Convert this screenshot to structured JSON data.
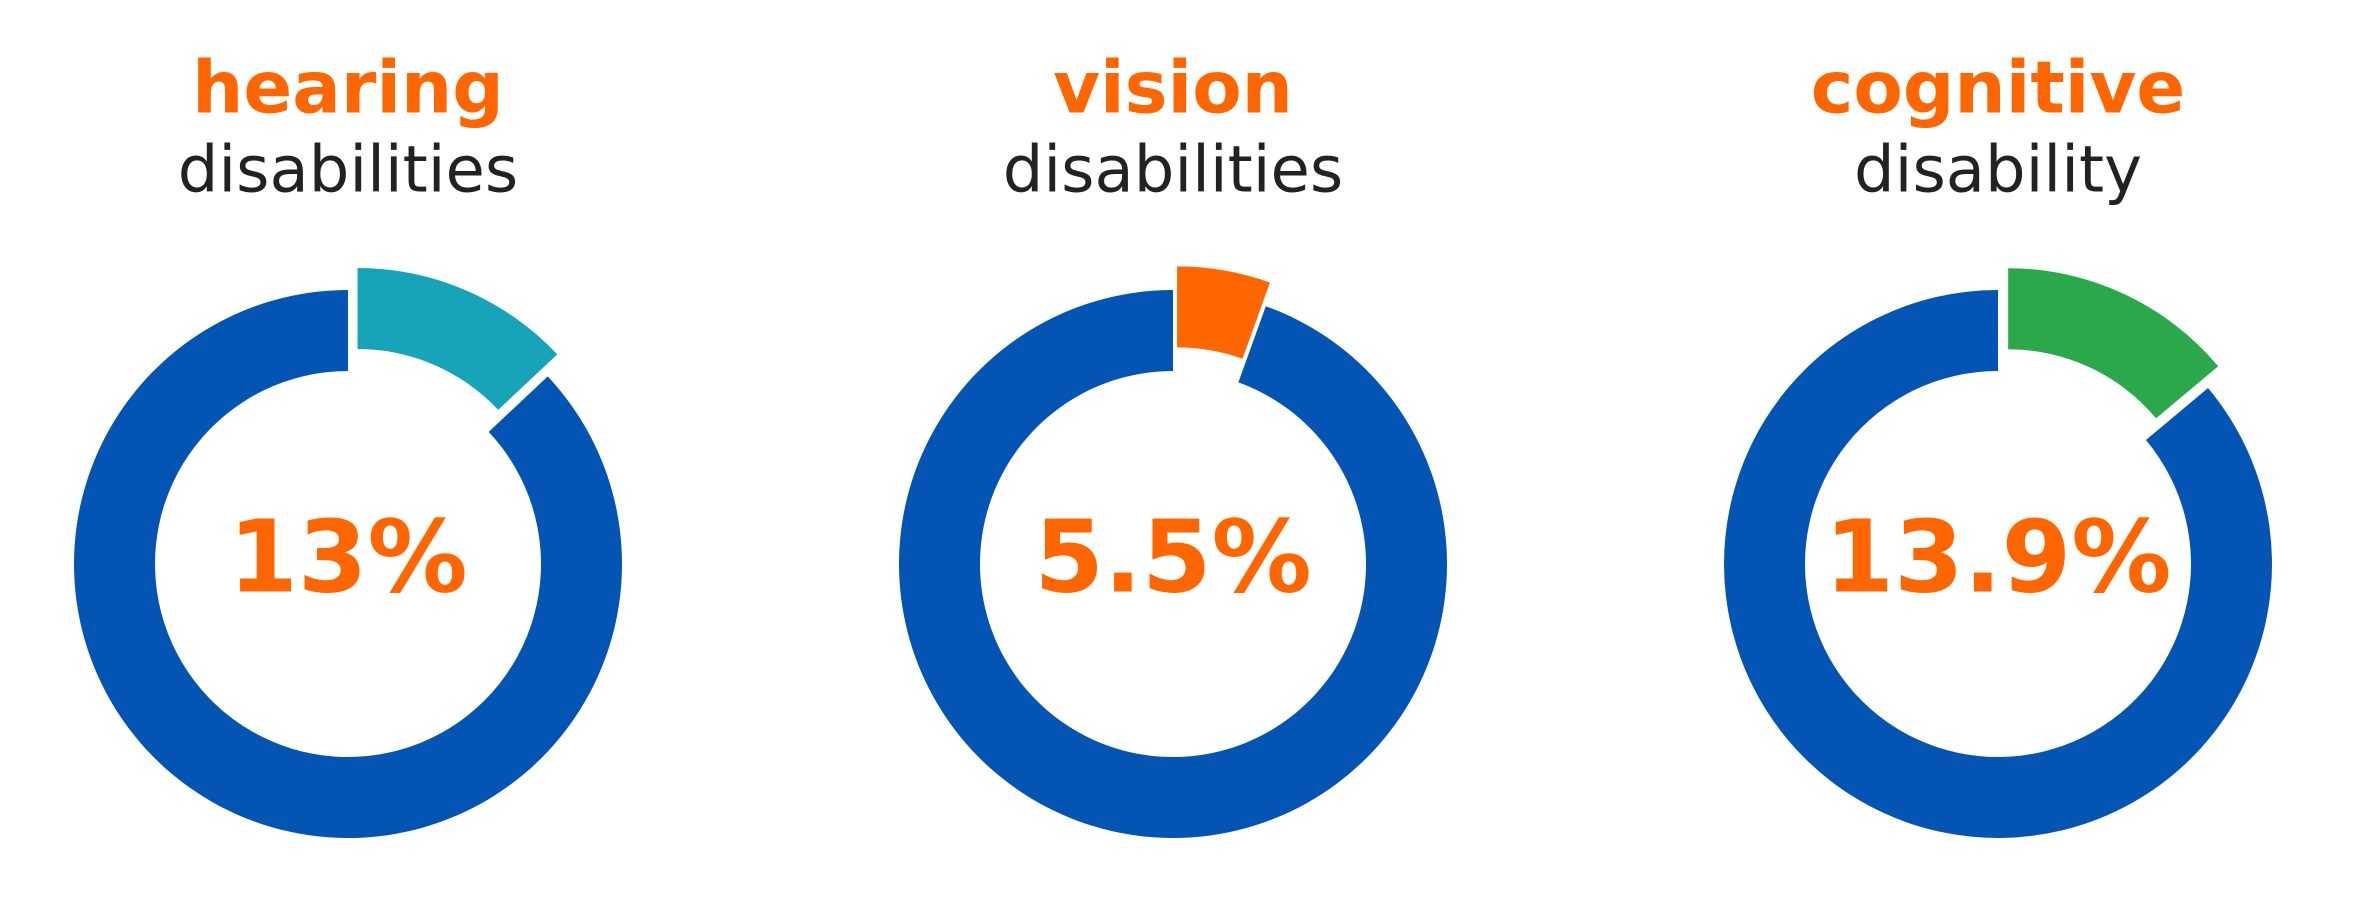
{
  "chart_data": [
    {
      "type": "pie",
      "title": "hearing",
      "subtitle": "disabilities",
      "values": [
        13,
        87
      ],
      "value_labels": [
        "13%",
        null
      ],
      "colors": [
        "#18a4b8",
        "#0455b3"
      ]
    },
    {
      "type": "pie",
      "title": "vision",
      "subtitle": "disabilities",
      "values": [
        5.5,
        94.5
      ],
      "value_labels": [
        "5.5%",
        null
      ],
      "colors": [
        "#ff6600",
        "#0455b3"
      ]
    },
    {
      "type": "pie",
      "title": "cognitive",
      "subtitle": "disability",
      "values": [
        13.9,
        86.1
      ],
      "value_labels": [
        "13.9%",
        null
      ],
      "colors": [
        "#2aa84a",
        "#0455b3"
      ]
    }
  ]
}
